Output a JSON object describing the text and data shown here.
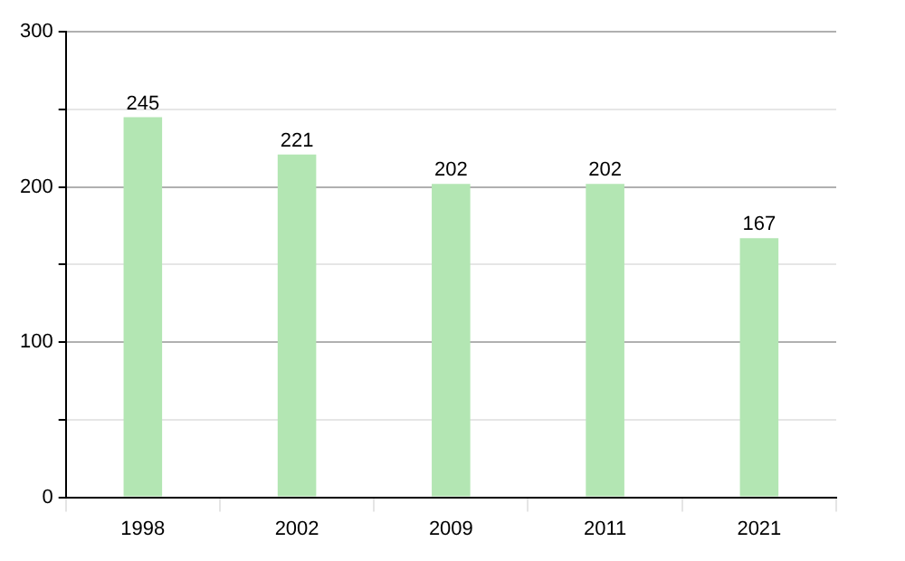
{
  "chart_data": {
    "type": "bar",
    "categories": [
      "1998",
      "2002",
      "2009",
      "2011",
      "2021"
    ],
    "values": [
      245,
      221,
      202,
      202,
      167
    ],
    "color": "#b3e6b3",
    "ylim": [
      0,
      300
    ],
    "yticks": [
      0,
      {
        "value": 50,
        "label": null
      },
      100,
      {
        "value": 150,
        "label": null
      },
      200,
      {
        "value": 250,
        "label": null
      },
      300
    ],
    "grid": true,
    "data_labels": true
  }
}
